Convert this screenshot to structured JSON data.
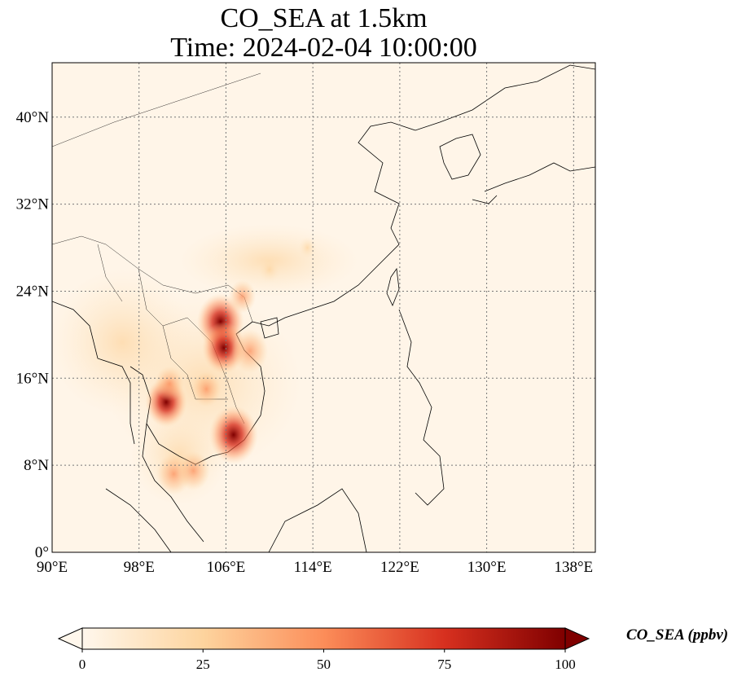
{
  "title": {
    "line1": "CO_SEA at 1.5km",
    "line2": "Time: 2024-02-04 10:00:00"
  },
  "map": {
    "projection": "PlateCarree",
    "extent": {
      "lon_min": 90,
      "lon_max": 140,
      "lat_min": 0,
      "lat_max": 45
    },
    "gridlines": "dotted",
    "coastlines": true,
    "borders": true,
    "lon_ticks": [
      {
        "value": 90,
        "label": "90°E"
      },
      {
        "value": 98,
        "label": "98°E"
      },
      {
        "value": 106,
        "label": "106°E"
      },
      {
        "value": 114,
        "label": "114°E"
      },
      {
        "value": 122,
        "label": "122°E"
      },
      {
        "value": 130,
        "label": "130°E"
      },
      {
        "value": 138,
        "label": "138°E"
      }
    ],
    "lat_ticks": [
      {
        "value": 0,
        "label": "0°"
      },
      {
        "value": 8,
        "label": "8°N"
      },
      {
        "value": 16,
        "label": "16°N"
      },
      {
        "value": 24,
        "label": "24°N"
      },
      {
        "value": 32,
        "label": "32°N"
      },
      {
        "value": 40,
        "label": "40°N"
      }
    ],
    "hotspots": [
      {
        "lon": 105.5,
        "lat": 21.2,
        "value": 95
      },
      {
        "lon": 105.8,
        "lat": 18.8,
        "value": 85
      },
      {
        "lon": 106.7,
        "lat": 10.8,
        "value": 100
      },
      {
        "lon": 100.5,
        "lat": 13.8,
        "value": 80
      },
      {
        "lon": 108.2,
        "lat": 18.5,
        "value": 65
      },
      {
        "lon": 101.2,
        "lat": 7.2,
        "value": 60
      },
      {
        "lon": 103.0,
        "lat": 7.5,
        "value": 55
      },
      {
        "lon": 104.2,
        "lat": 15.0,
        "value": 45
      },
      {
        "lon": 100.8,
        "lat": 15.5,
        "value": 45
      },
      {
        "lon": 107.5,
        "lat": 23.5,
        "value": 40
      },
      {
        "lon": 110.0,
        "lat": 26.0,
        "value": 25
      },
      {
        "lon": 113.5,
        "lat": 28.0,
        "value": 15
      }
    ]
  },
  "colorbar": {
    "cmap": "OrRd",
    "vmin": 0,
    "vmax": 100,
    "extend": "both",
    "ticks": [
      {
        "value": 0,
        "label": "0"
      },
      {
        "value": 25,
        "label": "25"
      },
      {
        "value": 50,
        "label": "50"
      },
      {
        "value": 75,
        "label": "75"
      },
      {
        "value": 100,
        "label": "100"
      }
    ],
    "label": "CO_SEA (ppbv)",
    "colors": [
      "#fff7ec",
      "#fdd49e",
      "#fc8d59",
      "#d7301f",
      "#7f0000"
    ]
  }
}
